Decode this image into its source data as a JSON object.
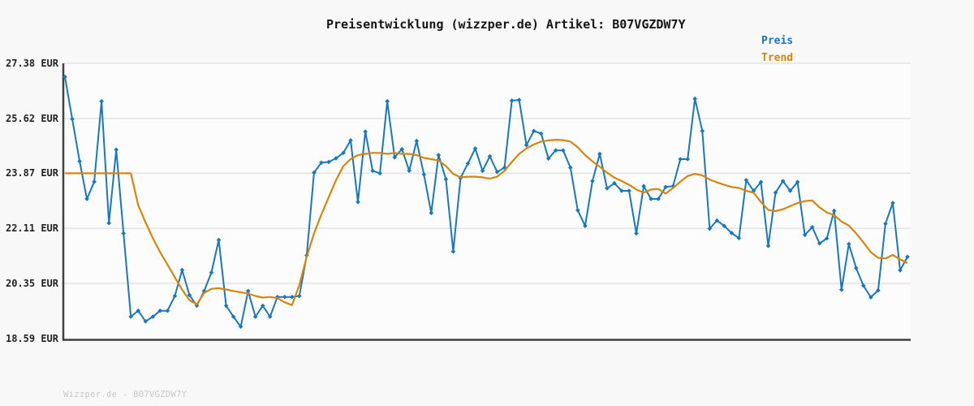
{
  "header": {
    "title": "Preisentwicklung (wizzper.de) Artikel: B07VGZDW7Y"
  },
  "watermark": "Wizzper.de - B07VGZDW7Y",
  "colors": {
    "price_line": "#1878be",
    "trend_line": "#d8860b",
    "grid_line": "#e3e3e3",
    "axis_spine": "#404040",
    "plot_background": "#fcfcfc",
    "page_background": "#f8f8f8",
    "watermark_text": "#c8c8c8",
    "title_text": "#161616"
  },
  "chart_data": {
    "type": "line",
    "title": "Preisentwicklung (wizzper.de) Artikel: B07VGZDW7Y",
    "xlabel": "",
    "ylabel": "",
    "ylim": [
      18.59,
      27.38
    ],
    "grid": true,
    "legend_position": "top-right",
    "x_axis_ticks_visible": false,
    "y_ticks": [
      {
        "value": 27.38,
        "label": "27.38 EUR"
      },
      {
        "value": 25.62,
        "label": "25.62 EUR"
      },
      {
        "value": 23.87,
        "label": "23.87 EUR"
      },
      {
        "value": 22.11,
        "label": "22.11 EUR"
      },
      {
        "value": 20.35,
        "label": "20.35 EUR"
      },
      {
        "value": 18.59,
        "label": "18.59 EUR"
      }
    ],
    "series": [
      {
        "name": "Preis",
        "color": "#1878be",
        "marker": "diamond",
        "values": [
          26.95,
          25.6,
          24.25,
          23.05,
          23.6,
          26.17,
          22.28,
          24.62,
          21.95,
          19.29,
          19.48,
          19.14,
          19.29,
          19.48,
          19.48,
          19.95,
          20.78,
          19.98,
          19.64,
          20.11,
          20.7,
          21.74,
          19.64,
          19.29,
          18.97,
          20.11,
          19.29,
          19.64,
          19.29,
          19.92,
          19.92,
          19.92,
          19.95,
          21.25,
          23.89,
          24.21,
          24.23,
          24.35,
          24.52,
          24.92,
          22.95,
          25.2,
          23.95,
          23.87,
          26.17,
          24.38,
          24.64,
          23.95,
          24.9,
          23.83,
          22.6,
          24.45,
          23.68,
          21.37,
          23.72,
          24.18,
          24.66,
          23.95,
          24.41,
          23.91,
          24.05,
          26.19,
          26.21,
          24.77,
          25.22,
          25.14,
          24.34,
          24.6,
          24.6,
          24.05,
          22.69,
          22.19,
          23.62,
          24.49,
          23.39,
          23.55,
          23.31,
          23.31,
          21.95,
          23.46,
          23.05,
          23.05,
          23.43,
          23.46,
          24.32,
          24.32,
          26.25,
          25.22,
          22.1,
          22.36,
          22.19,
          21.96,
          21.8,
          23.65,
          23.31,
          23.59,
          21.55,
          23.25,
          23.62,
          23.31,
          23.59,
          21.9,
          22.15,
          21.63,
          21.79,
          22.67,
          20.15,
          21.61,
          20.84,
          20.28,
          19.91,
          20.13,
          22.26,
          22.92,
          20.77,
          21.2
        ]
      },
      {
        "name": "Trend",
        "color": "#d8860b",
        "marker": "none",
        "values": [
          23.87,
          23.87,
          23.87,
          23.87,
          23.87,
          23.87,
          23.87,
          23.87,
          23.87,
          23.87,
          22.85,
          22.3,
          21.8,
          21.35,
          20.95,
          20.55,
          20.15,
          19.82,
          19.68,
          20.05,
          20.18,
          20.2,
          20.16,
          20.11,
          20.07,
          20.03,
          19.95,
          19.9,
          19.92,
          19.88,
          19.75,
          19.66,
          20.3,
          21.2,
          21.95,
          22.55,
          23.1,
          23.65,
          24.1,
          24.32,
          24.45,
          24.49,
          24.52,
          24.52,
          24.49,
          24.52,
          24.49,
          24.49,
          24.45,
          24.36,
          24.32,
          24.28,
          24.1,
          23.85,
          23.74,
          23.76,
          23.76,
          23.74,
          23.7,
          23.76,
          23.95,
          24.23,
          24.49,
          24.66,
          24.79,
          24.88,
          24.92,
          24.94,
          24.93,
          24.88,
          24.7,
          24.45,
          24.25,
          24.08,
          23.89,
          23.73,
          23.62,
          23.5,
          23.35,
          23.25,
          23.35,
          23.37,
          23.22,
          23.4,
          23.6,
          23.78,
          23.85,
          23.8,
          23.67,
          23.58,
          23.5,
          23.43,
          23.4,
          23.31,
          23.25,
          22.95,
          22.7,
          22.66,
          22.72,
          22.82,
          22.92,
          22.98,
          23.0,
          22.78,
          22.62,
          22.53,
          22.33,
          22.2,
          21.95,
          21.66,
          21.35,
          21.17,
          21.15,
          21.26,
          21.12,
          21.0
        ]
      }
    ]
  }
}
